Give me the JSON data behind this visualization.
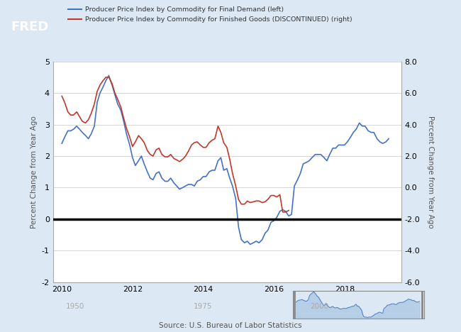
{
  "background_color": "#dce9f5",
  "plot_bg_color": "#ffffff",
  "left_label": "Percent Change from Year Ago",
  "right_label": "Percent Change from Year Ago",
  "legend_entries": [
    "Producer Price Index by Commodity for Final Demand (left)",
    "Producer Price Index by Commodity for Finished Goods (DISCONTINUED) (right)"
  ],
  "line_colors": [
    "#4472c4",
    "#c0392b"
  ],
  "source_text": "Source: U.S. Bureau of Labor Statistics",
  "left_ylim": [
    -2,
    5
  ],
  "right_ylim": [
    -6.0,
    8.0
  ],
  "left_yticks": [
    -2,
    -1,
    0,
    1,
    2,
    3,
    4,
    5
  ],
  "right_yticks": [
    -6.0,
    -4.0,
    -2.0,
    0.0,
    2.0,
    4.0,
    6.0,
    8.0
  ],
  "xticks": [
    2010,
    2012,
    2014,
    2016,
    2018
  ],
  "xlim_start": 2009.75,
  "xlim_end": 2019.6,
  "blue_x": [
    2010.0,
    2010.08,
    2010.17,
    2010.25,
    2010.33,
    2010.42,
    2010.5,
    2010.58,
    2010.67,
    2010.75,
    2010.83,
    2010.92,
    2011.0,
    2011.08,
    2011.17,
    2011.25,
    2011.33,
    2011.42,
    2011.5,
    2011.58,
    2011.67,
    2011.75,
    2011.83,
    2011.92,
    2012.0,
    2012.08,
    2012.17,
    2012.25,
    2012.33,
    2012.42,
    2012.5,
    2012.58,
    2012.67,
    2012.75,
    2012.83,
    2012.92,
    2013.0,
    2013.08,
    2013.17,
    2013.25,
    2013.33,
    2013.42,
    2013.5,
    2013.58,
    2013.67,
    2013.75,
    2013.83,
    2013.92,
    2014.0,
    2014.08,
    2014.17,
    2014.25,
    2014.33,
    2014.42,
    2014.5,
    2014.58,
    2014.67,
    2014.75,
    2014.83,
    2014.92,
    2015.0,
    2015.08,
    2015.17,
    2015.25,
    2015.33,
    2015.42,
    2015.5,
    2015.58,
    2015.67,
    2015.75,
    2015.83,
    2015.92,
    2016.0,
    2016.08,
    2016.17,
    2016.25,
    2016.33,
    2016.42,
    2016.5,
    2016.58,
    2016.67,
    2016.75,
    2016.83,
    2016.92,
    2017.0,
    2017.08,
    2017.17,
    2017.25,
    2017.33,
    2017.42,
    2017.5,
    2017.58,
    2017.67,
    2017.75,
    2017.83,
    2017.92,
    2018.0,
    2018.08,
    2018.17,
    2018.25,
    2018.33,
    2018.42,
    2018.5,
    2018.58,
    2018.67,
    2018.75,
    2018.83,
    2018.92,
    2019.0,
    2019.08,
    2019.17,
    2019.25
  ],
  "blue_y": [
    2.4,
    2.6,
    2.8,
    2.8,
    2.85,
    2.95,
    2.85,
    2.75,
    2.65,
    2.55,
    2.7,
    2.95,
    3.7,
    4.0,
    4.2,
    4.4,
    4.55,
    4.25,
    3.95,
    3.65,
    3.45,
    3.1,
    2.7,
    2.35,
    1.95,
    1.7,
    1.85,
    2.0,
    1.75,
    1.5,
    1.3,
    1.25,
    1.45,
    1.5,
    1.3,
    1.2,
    1.2,
    1.3,
    1.15,
    1.05,
    0.95,
    1.0,
    1.05,
    1.1,
    1.1,
    1.05,
    1.2,
    1.25,
    1.35,
    1.35,
    1.5,
    1.55,
    1.55,
    1.85,
    1.95,
    1.55,
    1.6,
    1.3,
    1.05,
    0.65,
    -0.25,
    -0.65,
    -0.75,
    -0.7,
    -0.8,
    -0.75,
    -0.7,
    -0.75,
    -0.65,
    -0.45,
    -0.35,
    -0.1,
    -0.05,
    0.05,
    0.25,
    0.3,
    0.25,
    0.1,
    0.15,
    1.05,
    1.25,
    1.45,
    1.75,
    1.8,
    1.85,
    1.95,
    2.05,
    2.05,
    2.05,
    1.95,
    1.85,
    2.05,
    2.25,
    2.25,
    2.35,
    2.35,
    2.35,
    2.45,
    2.6,
    2.75,
    2.85,
    3.05,
    2.95,
    2.95,
    2.8,
    2.75,
    2.75,
    2.55,
    2.45,
    2.4,
    2.45,
    2.55
  ],
  "red_x": [
    2010.0,
    2010.08,
    2010.17,
    2010.25,
    2010.33,
    2010.42,
    2010.5,
    2010.58,
    2010.67,
    2010.75,
    2010.83,
    2010.92,
    2011.0,
    2011.08,
    2011.17,
    2011.25,
    2011.33,
    2011.42,
    2011.5,
    2011.58,
    2011.67,
    2011.75,
    2011.83,
    2011.92,
    2012.0,
    2012.08,
    2012.17,
    2012.25,
    2012.33,
    2012.42,
    2012.5,
    2012.58,
    2012.67,
    2012.75,
    2012.83,
    2012.92,
    2013.0,
    2013.08,
    2013.17,
    2013.25,
    2013.33,
    2013.42,
    2013.5,
    2013.58,
    2013.67,
    2013.75,
    2013.83,
    2013.92,
    2014.0,
    2014.08,
    2014.17,
    2014.25,
    2014.33,
    2014.42,
    2014.5,
    2014.58,
    2014.67,
    2014.75,
    2014.83,
    2014.92,
    2015.0,
    2015.08,
    2015.17,
    2015.25,
    2015.33,
    2015.42,
    2015.5,
    2015.58,
    2015.67,
    2015.75,
    2015.83,
    2015.92,
    2016.0,
    2016.08,
    2016.17,
    2016.25,
    2016.33,
    2016.42
  ],
  "red_y_right": [
    5.8,
    5.4,
    4.8,
    4.6,
    4.6,
    4.8,
    4.5,
    4.2,
    4.1,
    4.3,
    4.7,
    5.3,
    6.1,
    6.5,
    6.8,
    7.0,
    7.0,
    6.6,
    6.0,
    5.6,
    5.1,
    4.4,
    3.75,
    3.2,
    2.6,
    2.9,
    3.3,
    3.1,
    2.85,
    2.35,
    2.1,
    2.0,
    2.4,
    2.5,
    2.1,
    1.95,
    1.95,
    2.1,
    1.85,
    1.75,
    1.65,
    1.8,
    2.0,
    2.3,
    2.7,
    2.85,
    2.9,
    2.7,
    2.55,
    2.55,
    2.85,
    3.0,
    3.1,
    3.9,
    3.5,
    2.85,
    2.55,
    1.8,
    0.9,
    0.1,
    -0.75,
    -1.05,
    -1.05,
    -0.85,
    -0.95,
    -0.9,
    -0.85,
    -0.85,
    -0.95,
    -0.9,
    -0.75,
    -0.5,
    -0.5,
    -0.6,
    -0.45,
    -1.55,
    -1.55,
    -1.45
  ],
  "mini_chart_color": "#4472c4",
  "mini_chart_fill": "#a8c4e0"
}
